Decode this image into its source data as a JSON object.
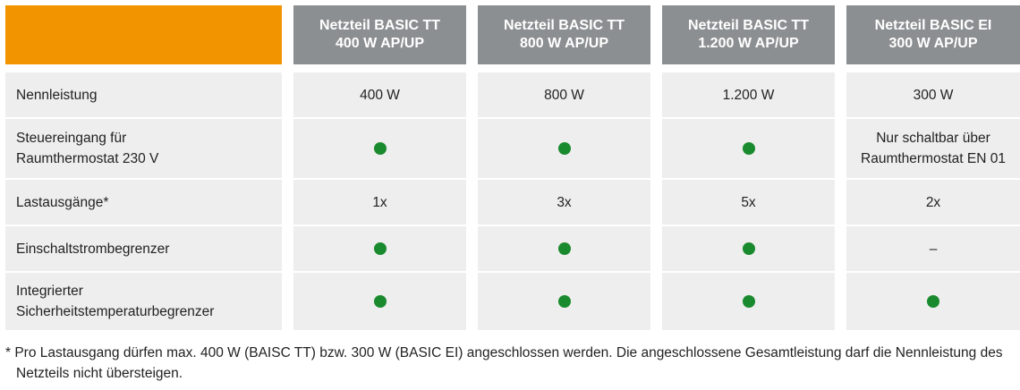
{
  "colors": {
    "accent_orange": "#f29400",
    "header_gray": "#8c8f91",
    "row_background": "#eeeeee",
    "check_green": "#1a8a2e"
  },
  "header": [
    {
      "line1": "Netzteil BASIC TT",
      "line2": "400 W AP/UP"
    },
    {
      "line1": "Netzteil BASIC TT",
      "line2": "800 W AP/UP"
    },
    {
      "line1": "Netzteil BASIC TT",
      "line2": "1.200 W AP/UP"
    },
    {
      "line1": "Netzteil BASIC EI",
      "line2": "300 W AP/UP"
    }
  ],
  "rows": [
    {
      "label": [
        "Nennleistung"
      ],
      "cells": [
        {
          "type": "text",
          "lines": [
            "400 W"
          ]
        },
        {
          "type": "text",
          "lines": [
            "800 W"
          ]
        },
        {
          "type": "text",
          "lines": [
            "1.200 W"
          ]
        },
        {
          "type": "text",
          "lines": [
            "300 W"
          ]
        }
      ]
    },
    {
      "label": [
        "Steuereingang für",
        "Raumthermostat 230 V"
      ],
      "cells": [
        {
          "type": "dot",
          "icon": "green-dot-icon"
        },
        {
          "type": "dot",
          "icon": "green-dot-icon"
        },
        {
          "type": "dot",
          "icon": "green-dot-icon"
        },
        {
          "type": "text",
          "lines": [
            "Nur schaltbar über",
            "Raumthermostat EN 01"
          ]
        }
      ]
    },
    {
      "label": [
        "Lastausgänge*"
      ],
      "cells": [
        {
          "type": "text",
          "lines": [
            "1x"
          ]
        },
        {
          "type": "text",
          "lines": [
            "3x"
          ]
        },
        {
          "type": "text",
          "lines": [
            "5x"
          ]
        },
        {
          "type": "text",
          "lines": [
            "2x"
          ]
        }
      ]
    },
    {
      "label": [
        "Einschaltstrombegrenzer"
      ],
      "cells": [
        {
          "type": "dot",
          "icon": "green-dot-icon"
        },
        {
          "type": "dot",
          "icon": "green-dot-icon"
        },
        {
          "type": "dot",
          "icon": "green-dot-icon"
        },
        {
          "type": "text",
          "lines": [
            "–"
          ]
        }
      ]
    },
    {
      "label": [
        "Integrierter",
        "Sicherheitstemperaturbegrenzer"
      ],
      "cells": [
        {
          "type": "dot",
          "icon": "green-dot-icon"
        },
        {
          "type": "dot",
          "icon": "green-dot-icon"
        },
        {
          "type": "dot",
          "icon": "green-dot-icon"
        },
        {
          "type": "dot",
          "icon": "green-dot-icon"
        }
      ]
    }
  ],
  "footnote": {
    "line1": "* Pro Lastausgang dürfen max. 400 W (BAISC TT) bzw. 300 W (BASIC EI) angeschlossen werden. Die angeschlossene Gesamtleistung darf die Nennleistung des",
    "line2": "Netzteils nicht übersteigen."
  }
}
